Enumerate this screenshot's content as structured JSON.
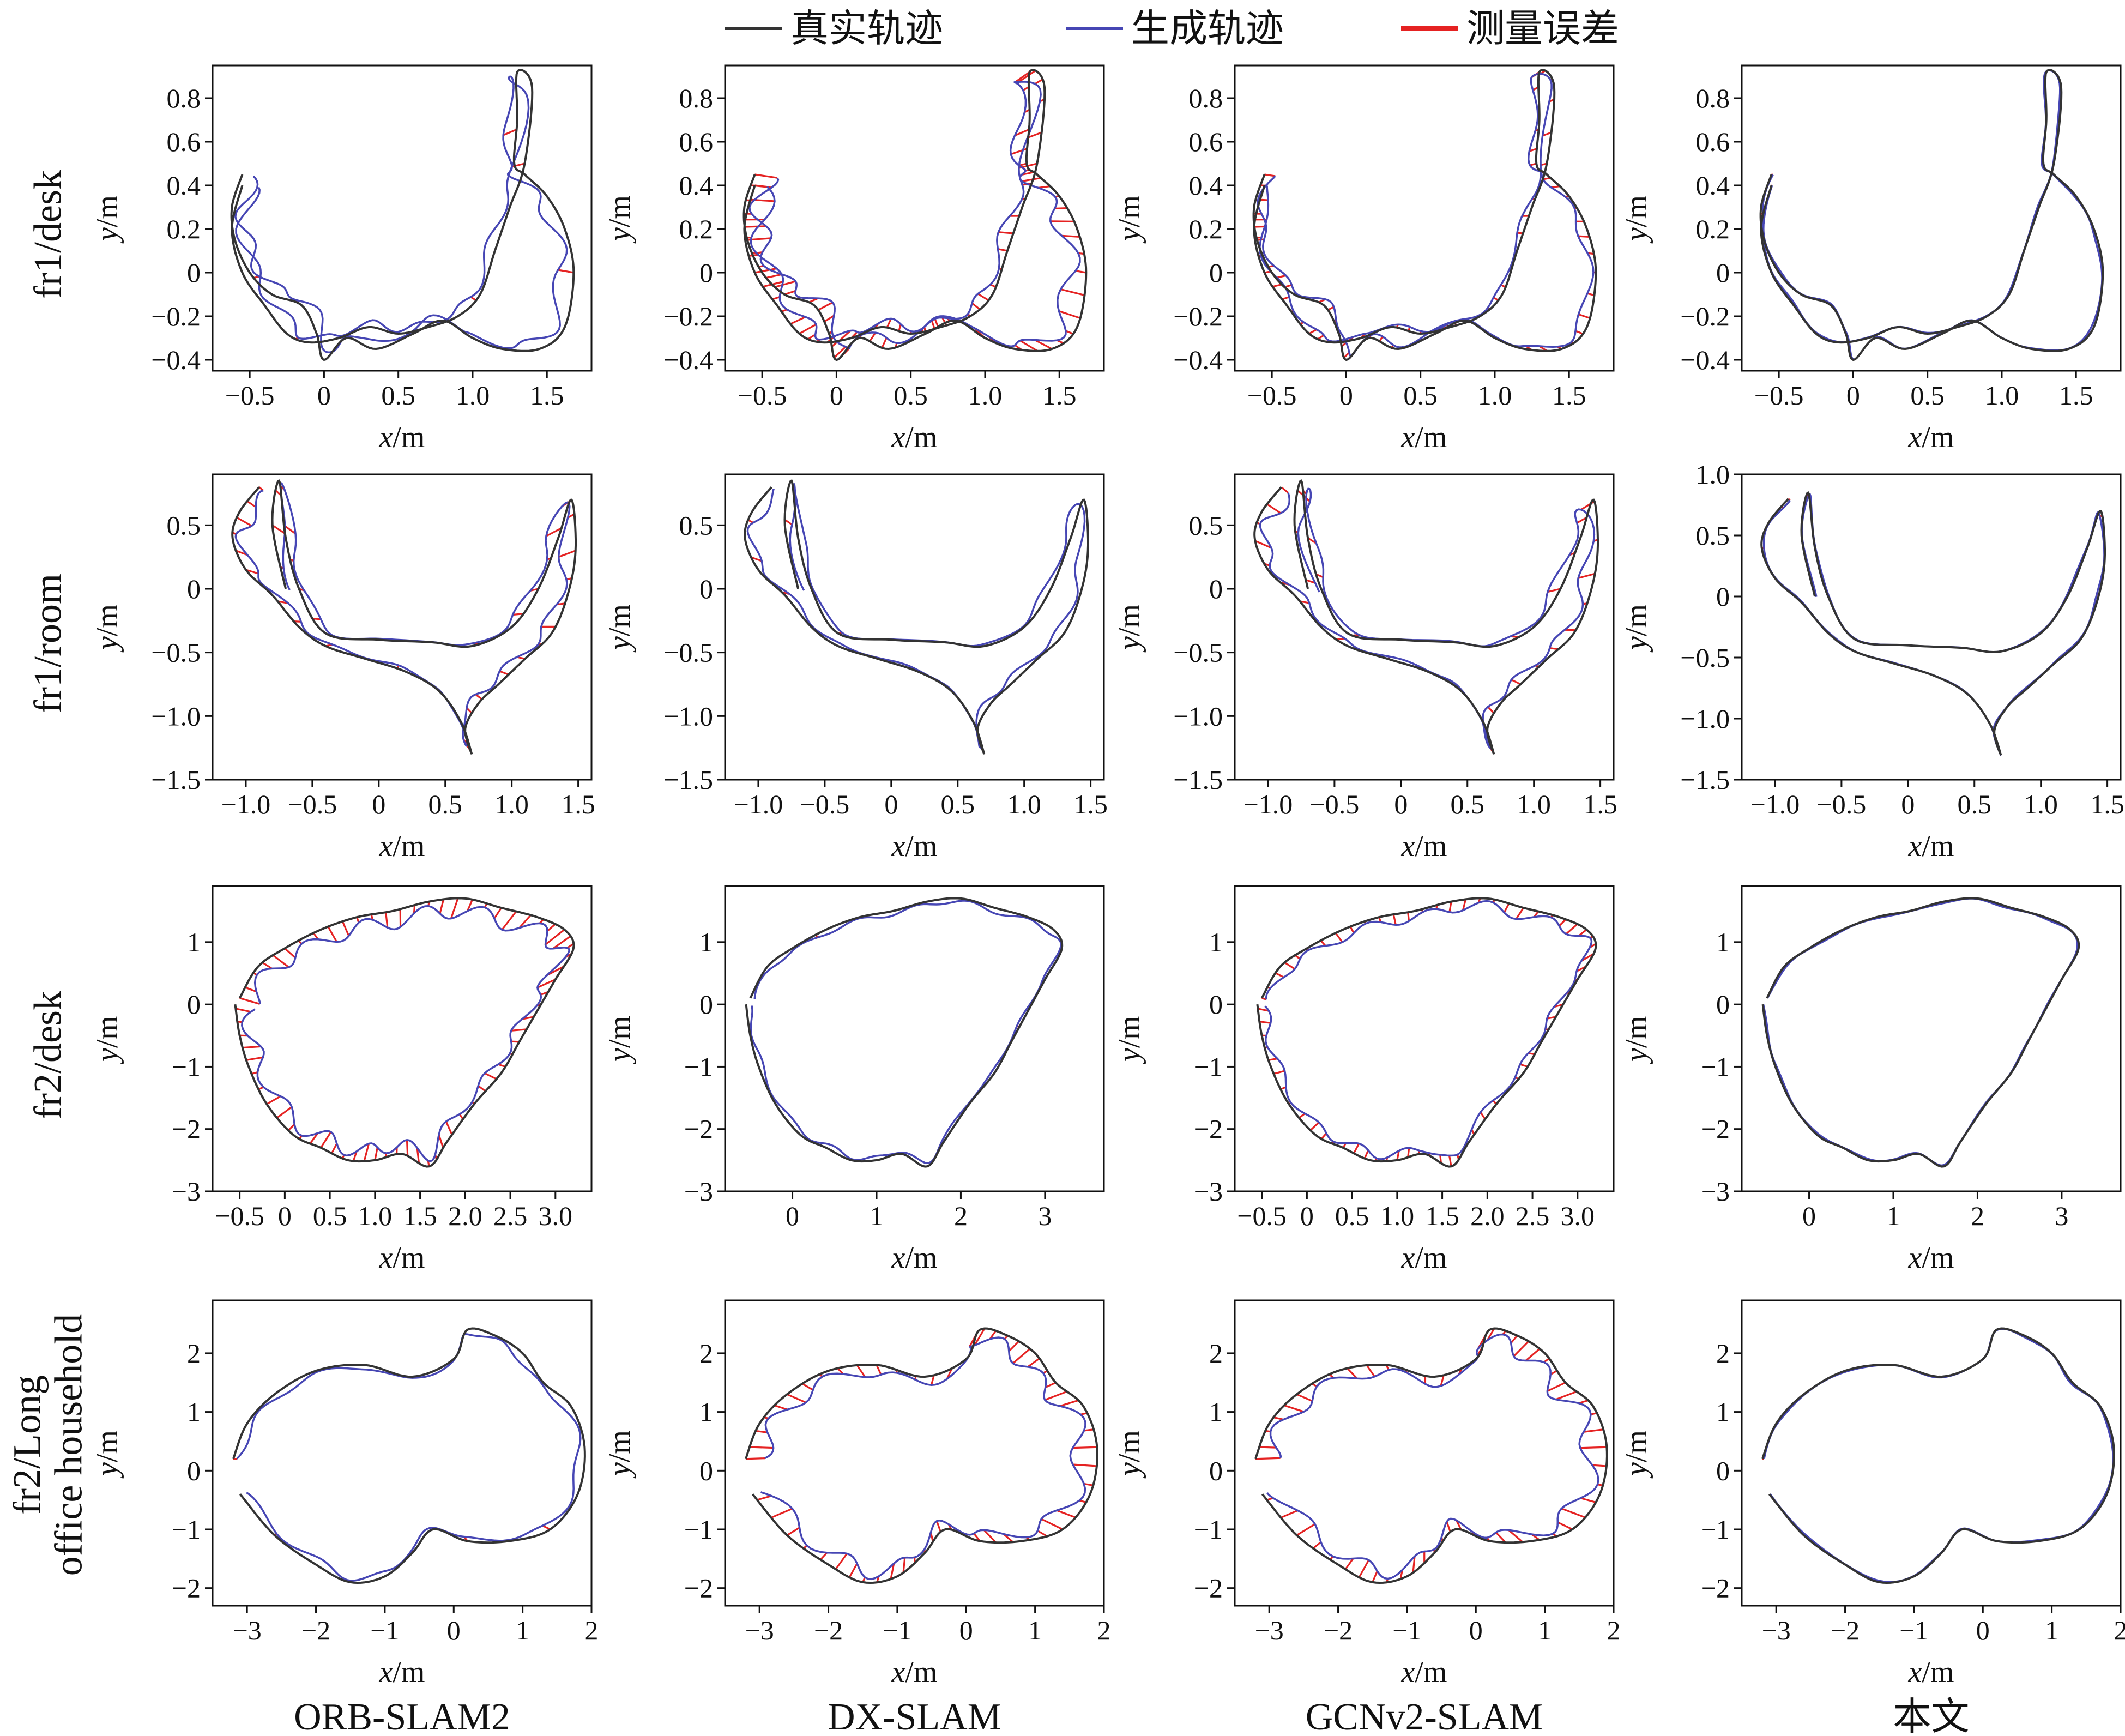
{
  "legend": {
    "items": [
      {
        "name": "真实轨迹",
        "color": "#333333"
      },
      {
        "name": "生成轨迹",
        "color": "#4646b4"
      },
      {
        "name": "测量误差",
        "color": "#e52222"
      }
    ]
  },
  "columns": [
    "ORB-SLAM2",
    "DX-SLAM",
    "GCNv2-SLAM",
    "本文"
  ],
  "rows": [
    {
      "label": [
        "fr1/desk"
      ]
    },
    {
      "label": [
        "fr1/room"
      ]
    },
    {
      "label": [
        "fr2/desk"
      ]
    },
    {
      "label": [
        "fr2/Long",
        "office household"
      ]
    }
  ],
  "axis_labels": {
    "x_var": "x",
    "y_var": "y",
    "unit": "/m"
  },
  "chart_data": [
    {
      "type": "line",
      "dataset": "fr1/desk",
      "method": "ORB-SLAM2",
      "xlim": [
        -0.75,
        1.8
      ],
      "ylim": [
        -0.45,
        0.95
      ],
      "xticks": [
        -0.5,
        0,
        0.5,
        1.0,
        1.5
      ],
      "xtick_labels": [
        "−0.5",
        "0",
        "0.5",
        "1.0",
        "1.5"
      ],
      "yticks": [
        -0.4,
        -0.2,
        0,
        0.2,
        0.4,
        0.6,
        0.8
      ],
      "ytick_labels": [
        "−0.4",
        "−0.2",
        "0",
        "0.2",
        "0.4",
        "0.6",
        "0.8"
      ],
      "error_density": 0.25,
      "error_scale": 1.0
    },
    {
      "type": "line",
      "dataset": "fr1/desk",
      "method": "DX-SLAM",
      "xlim": [
        -0.75,
        1.8
      ],
      "ylim": [
        -0.45,
        0.95
      ],
      "xticks": [
        -0.5,
        0,
        0.5,
        1.0,
        1.5
      ],
      "xtick_labels": [
        "−0.5",
        "0",
        "0.5",
        "1.0",
        "1.5"
      ],
      "yticks": [
        -0.4,
        -0.2,
        0,
        0.2,
        0.4,
        0.6,
        0.8
      ],
      "ytick_labels": [
        "−0.4",
        "−0.2",
        "0",
        "0.2",
        "0.4",
        "0.6",
        "0.8"
      ],
      "error_density": 1.0,
      "error_scale": 1.3
    },
    {
      "type": "line",
      "dataset": "fr1/desk",
      "method": "GCNv2-SLAM",
      "xlim": [
        -0.75,
        1.8
      ],
      "ylim": [
        -0.45,
        0.95
      ],
      "xticks": [
        -0.5,
        0,
        0.5,
        1.0,
        1.5
      ],
      "xtick_labels": [
        "−0.5",
        "0",
        "0.5",
        "1.0",
        "1.5"
      ],
      "yticks": [
        -0.4,
        -0.2,
        0,
        0.2,
        0.4,
        0.6,
        0.8
      ],
      "ytick_labels": [
        "−0.4",
        "−0.2",
        "0",
        "0.2",
        "0.4",
        "0.6",
        "0.8"
      ],
      "error_density": 0.9,
      "error_scale": 0.6
    },
    {
      "type": "line",
      "dataset": "fr1/desk",
      "method": "本文",
      "xlim": [
        -0.75,
        1.8
      ],
      "ylim": [
        -0.45,
        0.95
      ],
      "xticks": [
        -0.5,
        0,
        0.5,
        1.0,
        1.5
      ],
      "xtick_labels": [
        "−0.5",
        "0",
        "0.5",
        "1.0",
        "1.5"
      ],
      "yticks": [
        -0.4,
        -0.2,
        0,
        0.2,
        0.4,
        0.6,
        0.8
      ],
      "ytick_labels": [
        "−0.4",
        "−0.2",
        "0",
        "0.2",
        "0.4",
        "0.6",
        "0.8"
      ],
      "error_density": 1.0,
      "error_scale": 0.12
    },
    {
      "type": "line",
      "dataset": "fr1/room",
      "method": "ORB-SLAM2",
      "xlim": [
        -1.25,
        1.6
      ],
      "ylim": [
        -1.5,
        0.9
      ],
      "xticks": [
        -1.0,
        -0.5,
        0,
        0.5,
        1.0,
        1.5
      ],
      "xtick_labels": [
        "−1.0",
        "−0.5",
        "0",
        "0.5",
        "1.0",
        "1.5"
      ],
      "yticks": [
        -1.5,
        -1.0,
        -0.5,
        0,
        0.5
      ],
      "ytick_labels": [
        "−1.5",
        "−1.0",
        "−0.5",
        "0",
        "0.5"
      ],
      "error_density": 0.7,
      "error_scale": 1.0
    },
    {
      "type": "line",
      "dataset": "fr1/room",
      "method": "DX-SLAM",
      "xlim": [
        -1.25,
        1.6
      ],
      "ylim": [
        -1.5,
        0.9
      ],
      "xticks": [
        -1.0,
        -0.5,
        0,
        0.5,
        1.0,
        1.5
      ],
      "xtick_labels": [
        "−1.0",
        "−0.5",
        "0",
        "0.5",
        "1.0",
        "1.5"
      ],
      "yticks": [
        -1.5,
        -1.0,
        -0.5,
        0,
        0.5
      ],
      "ytick_labels": [
        "−1.5",
        "−1.0",
        "−0.5",
        "0",
        "0.5"
      ],
      "error_density": 0.3,
      "error_scale": 0.7
    },
    {
      "type": "line",
      "dataset": "fr1/room",
      "method": "GCNv2-SLAM",
      "xlim": [
        -1.25,
        1.6
      ],
      "ylim": [
        -1.5,
        0.9
      ],
      "xticks": [
        -1.0,
        -0.5,
        0,
        0.5,
        1.0,
        1.5
      ],
      "xtick_labels": [
        "−1.0",
        "−0.5",
        "0",
        "0.5",
        "1.0",
        "1.5"
      ],
      "yticks": [
        -1.5,
        -1.0,
        -0.5,
        0,
        0.5
      ],
      "ytick_labels": [
        "−1.5",
        "−1.0",
        "−0.5",
        "0",
        "0.5"
      ],
      "error_density": 0.6,
      "error_scale": 1.0
    },
    {
      "type": "line",
      "dataset": "fr1/room",
      "method": "本文",
      "xlim": [
        -1.25,
        1.6
      ],
      "ylim": [
        -1.5,
        1.0
      ],
      "xticks": [
        -1.0,
        -0.5,
        0,
        0.5,
        1.0,
        1.5
      ],
      "xtick_labels": [
        "−1.0",
        "−0.5",
        "0",
        "0.5",
        "1.0",
        "1.5"
      ],
      "yticks": [
        -1.5,
        -1.0,
        -0.5,
        0,
        0.5,
        1.0
      ],
      "ytick_labels": [
        "−1.5",
        "−1.0",
        "−0.5",
        "0",
        "0.5",
        "1.0"
      ],
      "error_density": 1.0,
      "error_scale": 0.15
    },
    {
      "type": "line",
      "dataset": "fr2/desk",
      "method": "ORB-SLAM2",
      "xlim": [
        -0.8,
        3.4
      ],
      "ylim": [
        -3.0,
        1.9
      ],
      "xticks": [
        -0.5,
        0,
        0.5,
        1.0,
        1.5,
        2.0,
        2.5,
        3.0
      ],
      "xtick_labels": [
        "−0.5",
        "0",
        "0.5",
        "1.0",
        "1.5",
        "2.0",
        "2.5",
        "3.0"
      ],
      "yticks": [
        -3,
        -2,
        -1,
        0,
        1
      ],
      "ytick_labels": [
        "−3",
        "−2",
        "−1",
        "0",
        "1"
      ],
      "error_density": 1.0,
      "error_scale": 1.5
    },
    {
      "type": "line",
      "dataset": "fr2/desk",
      "method": "DX-SLAM",
      "xlim": [
        -0.8,
        3.7
      ],
      "ylim": [
        -3.0,
        1.9
      ],
      "xticks": [
        0,
        1,
        2,
        3
      ],
      "xtick_labels": [
        "0",
        "1",
        "2",
        "3"
      ],
      "yticks": [
        -3,
        -2,
        -1,
        0,
        1
      ],
      "ytick_labels": [
        "−3",
        "−2",
        "−1",
        "0",
        "1"
      ],
      "error_density": 0.15,
      "error_scale": 0.4
    },
    {
      "type": "line",
      "dataset": "fr2/desk",
      "method": "GCNv2-SLAM",
      "xlim": [
        -0.8,
        3.4
      ],
      "ylim": [
        -3.0,
        1.9
      ],
      "xticks": [
        -0.5,
        0,
        0.5,
        1.0,
        1.5,
        2.0,
        2.5,
        3.0
      ],
      "xtick_labels": [
        "−0.5",
        "0",
        "0.5",
        "1.0",
        "1.5",
        "2.0",
        "2.5",
        "3.0"
      ],
      "yticks": [
        -3,
        -2,
        -1,
        0,
        1
      ],
      "ytick_labels": [
        "−3",
        "−2",
        "−1",
        "0",
        "1"
      ],
      "error_density": 1.0,
      "error_scale": 0.9
    },
    {
      "type": "line",
      "dataset": "fr2/desk",
      "method": "本文",
      "xlim": [
        -0.8,
        3.7
      ],
      "ylim": [
        -3.0,
        1.9
      ],
      "xticks": [
        0,
        1,
        2,
        3
      ],
      "xtick_labels": [
        "0",
        "1",
        "2",
        "3"
      ],
      "yticks": [
        -3,
        -2,
        -1,
        0,
        1
      ],
      "ytick_labels": [
        "−3",
        "−2",
        "−1",
        "0",
        "1"
      ],
      "error_density": 1.0,
      "error_scale": 0.12
    },
    {
      "type": "line",
      "dataset": "fr2/Long office household",
      "method": "ORB-SLAM2",
      "xlim": [
        -3.5,
        2.0
      ],
      "ylim": [
        -2.3,
        2.9
      ],
      "xticks": [
        -3,
        -2,
        -1,
        0,
        1,
        2
      ],
      "xtick_labels": [
        "−3",
        "−2",
        "−1",
        "0",
        "1",
        "2"
      ],
      "yticks": [
        -2,
        -1,
        0,
        1,
        2
      ],
      "ytick_labels": [
        "−2",
        "−1",
        "0",
        "1",
        "2"
      ],
      "error_density": 0.2,
      "error_scale": 0.6
    },
    {
      "type": "line",
      "dataset": "fr2/Long office household",
      "method": "DX-SLAM",
      "xlim": [
        -3.5,
        2.0
      ],
      "ylim": [
        -2.3,
        2.9
      ],
      "xticks": [
        -3,
        -2,
        -1,
        0,
        1,
        2
      ],
      "xtick_labels": [
        "−3",
        "−2",
        "−1",
        "0",
        "1",
        "2"
      ],
      "yticks": [
        -2,
        -1,
        0,
        1,
        2
      ],
      "ytick_labels": [
        "−2",
        "−1",
        "0",
        "1",
        "2"
      ],
      "error_density": 1.0,
      "error_scale": 1.6
    },
    {
      "type": "line",
      "dataset": "fr2/Long office household",
      "method": "GCNv2-SLAM",
      "xlim": [
        -3.5,
        2.0
      ],
      "ylim": [
        -2.3,
        2.9
      ],
      "xticks": [
        -3,
        -2,
        -1,
        0,
        1,
        2
      ],
      "xtick_labels": [
        "−3",
        "−2",
        "−1",
        "0",
        "1",
        "2"
      ],
      "yticks": [
        -2,
        -1,
        0,
        1,
        2
      ],
      "ytick_labels": [
        "−2",
        "−1",
        "0",
        "1",
        "2"
      ],
      "error_density": 1.0,
      "error_scale": 1.6
    },
    {
      "type": "line",
      "dataset": "fr2/Long office household",
      "method": "本文",
      "xlim": [
        -3.5,
        2.0
      ],
      "ylim": [
        -2.3,
        2.9
      ],
      "xticks": [
        -3,
        -2,
        -1,
        0,
        1,
        2
      ],
      "xtick_labels": [
        "−3",
        "−2",
        "−1",
        "0",
        "1",
        "2"
      ],
      "yticks": [
        -2,
        -1,
        0,
        1,
        2
      ],
      "ytick_labels": [
        "−2",
        "−1",
        "0",
        "1",
        "2"
      ],
      "error_density": 1.0,
      "error_scale": 0.12
    }
  ],
  "ground_truth": {
    "fr1/desk": [
      [
        -0.55,
        0.45
      ],
      [
        -0.62,
        0.3
      ],
      [
        -0.6,
        0.15
      ],
      [
        -0.5,
        0.0
      ],
      [
        -0.35,
        -0.1
      ],
      [
        -0.15,
        -0.15
      ],
      [
        -0.05,
        -0.28
      ],
      [
        0.0,
        -0.4
      ],
      [
        0.15,
        -0.3
      ],
      [
        0.35,
        -0.35
      ],
      [
        0.6,
        -0.28
      ],
      [
        0.8,
        -0.22
      ],
      [
        1.0,
        -0.3
      ],
      [
        1.2,
        -0.35
      ],
      [
        1.45,
        -0.35
      ],
      [
        1.62,
        -0.25
      ],
      [
        1.68,
        0.0
      ],
      [
        1.62,
        0.2
      ],
      [
        1.5,
        0.35
      ],
      [
        1.35,
        0.45
      ],
      [
        1.28,
        0.5
      ],
      [
        1.3,
        0.7
      ],
      [
        1.3,
        0.92
      ],
      [
        1.4,
        0.85
      ],
      [
        1.35,
        0.5
      ],
      [
        1.25,
        0.3
      ],
      [
        1.15,
        0.1
      ],
      [
        1.05,
        -0.1
      ],
      [
        0.9,
        -0.2
      ],
      [
        0.7,
        -0.25
      ],
      [
        0.5,
        -0.28
      ],
      [
        0.3,
        -0.25
      ],
      [
        0.1,
        -0.3
      ],
      [
        -0.1,
        -0.32
      ],
      [
        -0.25,
        -0.28
      ],
      [
        -0.4,
        -0.15
      ],
      [
        -0.55,
        0.0
      ],
      [
        -0.62,
        0.2
      ],
      [
        -0.55,
        0.4
      ]
    ],
    "fr1/room": [
      [
        -0.9,
        0.8
      ],
      [
        -1.05,
        0.6
      ],
      [
        -1.1,
        0.4
      ],
      [
        -1.0,
        0.15
      ],
      [
        -0.8,
        -0.05
      ],
      [
        -0.6,
        -0.3
      ],
      [
        -0.4,
        -0.45
      ],
      [
        -0.1,
        -0.55
      ],
      [
        0.2,
        -0.65
      ],
      [
        0.45,
        -0.8
      ],
      [
        0.62,
        -1.05
      ],
      [
        0.7,
        -1.3
      ],
      [
        0.65,
        -1.1
      ],
      [
        0.75,
        -0.9
      ],
      [
        0.9,
        -0.75
      ],
      [
        1.1,
        -0.55
      ],
      [
        1.3,
        -0.35
      ],
      [
        1.42,
        -0.05
      ],
      [
        1.48,
        0.3
      ],
      [
        1.45,
        0.7
      ],
      [
        1.35,
        0.4
      ],
      [
        1.2,
        0.0
      ],
      [
        1.0,
        -0.3
      ],
      [
        0.7,
        -0.45
      ],
      [
        0.4,
        -0.42
      ],
      [
        0.0,
        -0.4
      ],
      [
        -0.4,
        -0.35
      ],
      [
        -0.6,
        0.0
      ],
      [
        -0.7,
        0.4
      ],
      [
        -0.75,
        0.85
      ],
      [
        -0.8,
        0.5
      ],
      [
        -0.7,
        0.0
      ]
    ],
    "fr2/desk": [
      [
        -0.5,
        0.1
      ],
      [
        -0.3,
        0.6
      ],
      [
        0.0,
        0.9
      ],
      [
        0.4,
        1.2
      ],
      [
        0.8,
        1.4
      ],
      [
        1.2,
        1.5
      ],
      [
        1.6,
        1.65
      ],
      [
        2.0,
        1.7
      ],
      [
        2.4,
        1.55
      ],
      [
        2.8,
        1.4
      ],
      [
        3.1,
        1.2
      ],
      [
        3.2,
        0.9
      ],
      [
        3.0,
        0.4
      ],
      [
        2.8,
        -0.1
      ],
      [
        2.6,
        -0.6
      ],
      [
        2.4,
        -1.1
      ],
      [
        2.1,
        -1.6
      ],
      [
        1.8,
        -2.2
      ],
      [
        1.6,
        -2.6
      ],
      [
        1.3,
        -2.4
      ],
      [
        1.0,
        -2.5
      ],
      [
        0.7,
        -2.5
      ],
      [
        0.4,
        -2.3
      ],
      [
        0.1,
        -2.1
      ],
      [
        -0.2,
        -1.6
      ],
      [
        -0.4,
        -1.0
      ],
      [
        -0.5,
        -0.5
      ],
      [
        -0.55,
        0.0
      ]
    ],
    "fr2/Long office household": [
      [
        -3.2,
        0.2
      ],
      [
        -3.0,
        0.8
      ],
      [
        -2.6,
        1.3
      ],
      [
        -2.0,
        1.7
      ],
      [
        -1.3,
        1.8
      ],
      [
        -0.6,
        1.6
      ],
      [
        0.0,
        1.9
      ],
      [
        0.2,
        2.4
      ],
      [
        0.6,
        2.3
      ],
      [
        1.0,
        2.0
      ],
      [
        1.3,
        1.5
      ],
      [
        1.7,
        1.1
      ],
      [
        1.9,
        0.4
      ],
      [
        1.8,
        -0.4
      ],
      [
        1.4,
        -1.0
      ],
      [
        0.8,
        -1.2
      ],
      [
        0.2,
        -1.2
      ],
      [
        -0.3,
        -1.0
      ],
      [
        -0.6,
        -1.4
      ],
      [
        -1.0,
        -1.8
      ],
      [
        -1.5,
        -1.9
      ],
      [
        -2.0,
        -1.6
      ],
      [
        -2.6,
        -1.1
      ],
      [
        -3.1,
        -0.4
      ]
    ]
  }
}
